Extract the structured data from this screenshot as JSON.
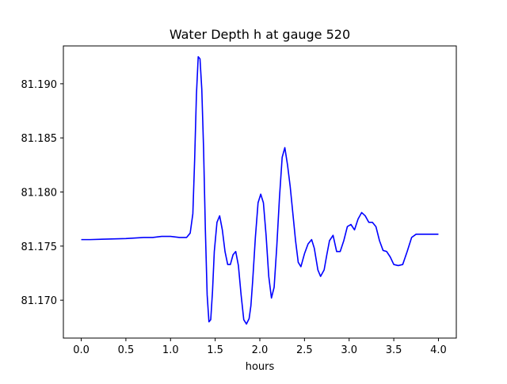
{
  "chart_data": {
    "type": "line",
    "title": "Water Depth h at gauge 520",
    "xlabel": "hours",
    "ylabel": "",
    "xlim": [
      -0.2,
      4.2
    ],
    "ylim": [
      81.1665,
      81.1935
    ],
    "x_ticks": [
      0.0,
      0.5,
      1.0,
      1.5,
      2.0,
      2.5,
      3.0,
      3.5,
      4.0
    ],
    "x_tick_labels": [
      "0.0",
      "0.5",
      "1.0",
      "1.5",
      "2.0",
      "2.5",
      "3.0",
      "3.5",
      "4.0"
    ],
    "y_ticks": [
      81.17,
      81.175,
      81.18,
      81.185,
      81.19
    ],
    "y_tick_labels": [
      "81.170",
      "81.175",
      "81.180",
      "81.185",
      "81.190"
    ],
    "grid": false,
    "series": [
      {
        "color": "#0000ff",
        "x": [
          0.0,
          0.1,
          0.3,
          0.5,
          0.7,
          0.8,
          0.9,
          1.0,
          1.1,
          1.18,
          1.22,
          1.25,
          1.27,
          1.29,
          1.31,
          1.33,
          1.35,
          1.37,
          1.39,
          1.41,
          1.43,
          1.45,
          1.47,
          1.49,
          1.52,
          1.55,
          1.58,
          1.61,
          1.64,
          1.67,
          1.7,
          1.73,
          1.76,
          1.79,
          1.82,
          1.85,
          1.88,
          1.9,
          1.92,
          1.95,
          1.98,
          2.01,
          2.04,
          2.07,
          2.1,
          2.13,
          2.16,
          2.19,
          2.22,
          2.25,
          2.28,
          2.31,
          2.34,
          2.37,
          2.4,
          2.43,
          2.46,
          2.5,
          2.54,
          2.58,
          2.61,
          2.65,
          2.68,
          2.72,
          2.75,
          2.78,
          2.82,
          2.86,
          2.9,
          2.94,
          2.98,
          3.02,
          3.06,
          3.1,
          3.14,
          3.18,
          3.22,
          3.26,
          3.3,
          3.34,
          3.38,
          3.42,
          3.46,
          3.5,
          3.55,
          3.6,
          3.65,
          3.7,
          3.75,
          3.8,
          3.85,
          3.9,
          3.95,
          4.0
        ],
        "y": [
          81.1756,
          81.1756,
          81.17565,
          81.1757,
          81.1758,
          81.1758,
          81.1759,
          81.1759,
          81.1758,
          81.1758,
          81.1762,
          81.178,
          81.183,
          81.189,
          81.1925,
          81.1923,
          81.1895,
          81.184,
          81.1765,
          81.1705,
          81.168,
          81.1682,
          81.1708,
          81.1745,
          81.1772,
          81.1778,
          81.1765,
          81.1745,
          81.1733,
          81.1733,
          81.1742,
          81.1745,
          81.1732,
          81.1705,
          81.1682,
          81.1678,
          81.1683,
          81.1695,
          81.1718,
          81.1758,
          81.179,
          81.1798,
          81.179,
          81.176,
          81.1722,
          81.1702,
          81.1712,
          81.175,
          81.1795,
          81.1832,
          81.1841,
          81.1825,
          81.1805,
          81.178,
          81.1755,
          81.1735,
          81.1731,
          81.1743,
          81.1752,
          81.1756,
          81.1748,
          81.1728,
          81.1722,
          81.1728,
          81.1742,
          81.1755,
          81.176,
          81.1745,
          81.1745,
          81.1755,
          81.1768,
          81.177,
          81.1765,
          81.1775,
          81.1781,
          81.1778,
          81.1772,
          81.1772,
          81.1768,
          81.1755,
          81.1746,
          81.1745,
          81.174,
          81.1733,
          81.1732,
          81.1733,
          81.1745,
          81.1758,
          81.1761,
          81.1761,
          81.1761,
          81.1761,
          81.1761,
          81.1761
        ]
      }
    ]
  }
}
